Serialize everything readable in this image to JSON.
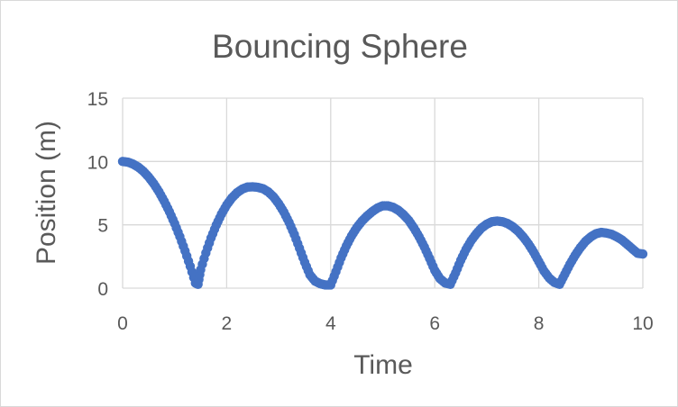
{
  "chart_data": {
    "type": "scatter",
    "title": "Bouncing Sphere",
    "xlabel": "Time",
    "ylabel": "Position (m)",
    "xlim": [
      0,
      10
    ],
    "ylim": [
      0,
      15
    ],
    "x_ticks": [
      "0",
      "2",
      "4",
      "6",
      "8",
      "10"
    ],
    "y_ticks": [
      "0",
      "5",
      "10",
      "15"
    ],
    "grid": true,
    "legend": "none",
    "marker_color": "#4472C4",
    "series": [
      {
        "x": [
          0.0,
          0.1,
          0.2,
          0.3,
          0.4,
          0.5,
          0.6,
          0.7,
          0.8,
          0.9,
          1.0,
          1.1,
          1.2,
          1.3,
          1.4,
          1.45,
          1.5,
          1.6,
          1.7,
          1.8,
          1.9,
          2.0,
          2.1,
          2.2,
          2.3,
          2.4,
          2.5,
          2.6,
          2.7,
          2.8,
          2.9,
          3.0,
          3.1,
          3.2,
          3.3,
          3.4,
          3.5,
          3.6,
          3.7,
          3.8,
          3.9,
          4.0,
          4.1,
          4.2,
          4.3,
          4.4,
          4.5,
          4.6,
          4.7,
          4.8,
          4.9,
          5.0,
          5.1,
          5.2,
          5.3,
          5.4,
          5.5,
          5.6,
          5.7,
          5.8,
          5.9,
          6.0,
          6.1,
          6.2,
          6.3,
          6.4,
          6.5,
          6.6,
          6.7,
          6.8,
          6.9,
          7.0,
          7.1,
          7.2,
          7.3,
          7.4,
          7.5,
          7.6,
          7.7,
          7.8,
          7.9,
          8.0,
          8.1,
          8.2,
          8.3,
          8.4,
          8.5,
          8.6,
          8.7,
          8.8,
          8.9,
          9.0,
          9.1,
          9.2,
          9.3,
          9.4,
          9.5,
          9.6,
          9.7,
          9.8,
          9.9,
          10.0
        ],
        "y": [
          10.0,
          9.95,
          9.8,
          9.56,
          9.22,
          8.78,
          8.24,
          7.6,
          6.86,
          6.03,
          5.1,
          4.07,
          2.94,
          1.72,
          0.4,
          0.3,
          1.45,
          2.78,
          3.96,
          4.98,
          5.84,
          6.56,
          7.12,
          7.54,
          7.82,
          7.98,
          8.0,
          7.96,
          7.85,
          7.6,
          7.21,
          6.67,
          6.0,
          5.19,
          4.24,
          3.15,
          2.04,
          1.05,
          0.55,
          0.35,
          0.25,
          0.25,
          1.3,
          2.39,
          3.33,
          4.12,
          4.77,
          5.29,
          5.7,
          6.05,
          6.33,
          6.5,
          6.5,
          6.38,
          6.15,
          5.8,
          5.35,
          4.75,
          4.05,
          3.25,
          2.35,
          1.4,
          0.75,
          0.4,
          0.3,
          1.2,
          2.2,
          3.05,
          3.75,
          4.3,
          4.75,
          5.05,
          5.25,
          5.3,
          5.25,
          5.1,
          4.85,
          4.5,
          4.05,
          3.5,
          2.85,
          2.1,
          1.35,
          0.8,
          0.45,
          0.3,
          1.1,
          1.9,
          2.6,
          3.2,
          3.7,
          4.05,
          4.3,
          4.4,
          4.35,
          4.25,
          4.05,
          3.8,
          3.45,
          3.1,
          2.75,
          2.7
        ]
      }
    ]
  }
}
